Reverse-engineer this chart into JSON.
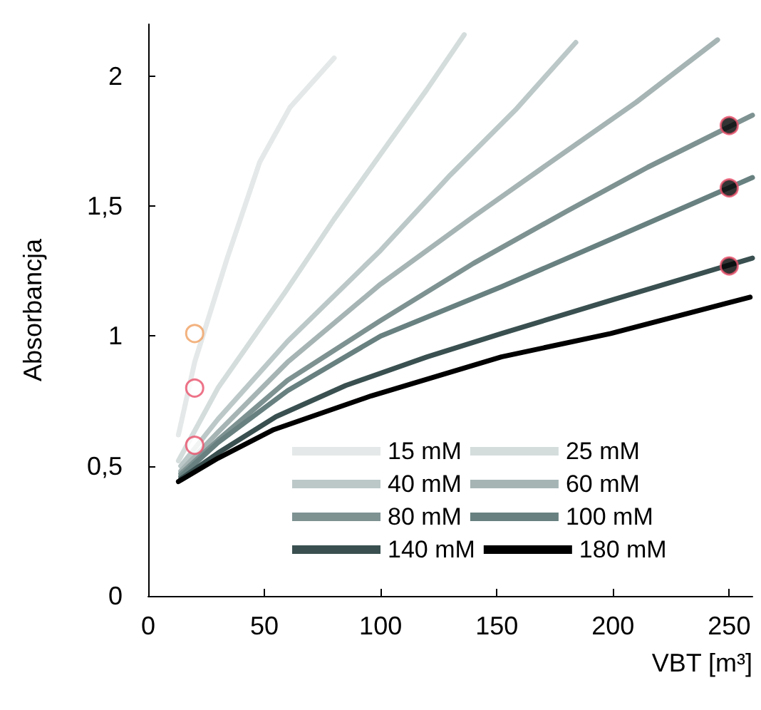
{
  "chart_data": {
    "type": "line",
    "xlabel": "VBT [m³]",
    "ylabel": "Absorbancja",
    "xlim": [
      0,
      260
    ],
    "ylim": [
      0,
      2.2
    ],
    "xticks": [
      0,
      50,
      100,
      150,
      200,
      250
    ],
    "yticks": [
      0,
      {
        "value": 0.5,
        "label": "0,5"
      },
      1,
      {
        "value": 1.5,
        "label": "1,5"
      },
      2
    ],
    "grid": false,
    "legend": "bottom right",
    "marker": "none",
    "line_style": "solid",
    "series": [
      {
        "name": "15 mM",
        "color": "#e4e8e8",
        "x": [
          13,
          20,
          34,
          48,
          61,
          80
        ],
        "values": [
          0.62,
          0.9,
          1.3,
          1.67,
          1.88,
          2.07
        ]
      },
      {
        "name": "25 mM",
        "color": "#d4dcdc",
        "x": [
          13,
          30,
          59,
          80,
          100,
          120,
          136
        ],
        "values": [
          0.52,
          0.8,
          1.17,
          1.45,
          1.7,
          1.95,
          2.16
        ]
      },
      {
        "name": "40 mM",
        "color": "#bcc8c8",
        "x": [
          14,
          30,
          60,
          100,
          130,
          158,
          184
        ],
        "values": [
          0.5,
          0.68,
          0.98,
          1.33,
          1.62,
          1.87,
          2.13
        ]
      },
      {
        "name": "60 mM",
        "color": "#a6b4b4",
        "x": [
          14,
          30,
          60,
          100,
          140,
          178,
          210,
          245
        ],
        "values": [
          0.48,
          0.63,
          0.9,
          1.2,
          1.46,
          1.7,
          1.9,
          2.14
        ]
      },
      {
        "name": "80 mM",
        "color": "#7e9292",
        "x": [
          14,
          30,
          60,
          100,
          140,
          180,
          215,
          260
        ],
        "values": [
          0.47,
          0.6,
          0.83,
          1.06,
          1.28,
          1.48,
          1.65,
          1.85
        ]
      },
      {
        "name": "100 mM",
        "color": "#688080",
        "x": [
          14,
          30,
          60,
          100,
          152,
          201,
          260
        ],
        "values": [
          0.46,
          0.59,
          0.79,
          1.0,
          1.19,
          1.38,
          1.61
        ]
      },
      {
        "name": "140 mM",
        "color": "#3a5050",
        "x": [
          14,
          30,
          55,
          85,
          120,
          152,
          200,
          260
        ],
        "values": [
          0.45,
          0.55,
          0.69,
          0.81,
          0.92,
          1.01,
          1.14,
          1.3
        ]
      },
      {
        "name": "180 mM",
        "color": "#000000",
        "x": [
          13,
          30,
          54,
          96,
          152,
          199,
          259
        ],
        "values": [
          0.44,
          0.53,
          0.64,
          0.77,
          0.92,
          1.01,
          1.15
        ]
      },
      {
        "type": "scatter",
        "marker": "circle",
        "colors": [
          "#f0a060",
          "#e8506a",
          "#e8506a"
        ],
        "x": [
          20,
          20,
          20
        ],
        "values": [
          1.01,
          0.8,
          0.58
        ]
      },
      {
        "type": "scatter",
        "marker": "circle",
        "color": "#000000",
        "x": [
          250,
          250,
          250
        ],
        "values": [
          1.81,
          1.57,
          1.27
        ]
      }
    ]
  }
}
